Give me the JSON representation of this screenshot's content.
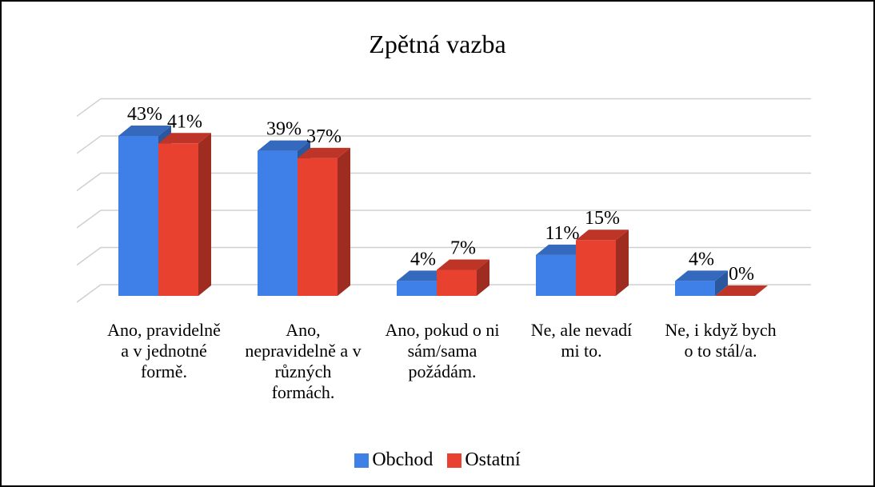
{
  "chart_data": {
    "type": "bar3d",
    "title": "Zpětná vazba",
    "categories": [
      "Ano, pravidelně a v jednotné formě.",
      "Ano, nepravidelně a v různých formách.",
      "Ano, pokud o ni sám/sama požádám.",
      "Ne, ale nevadí mi to.",
      "Ne, i když bych o to stál/a."
    ],
    "series": [
      {
        "name": "Obchod",
        "color": "#3f80e8",
        "values": [
          43,
          39,
          4,
          11,
          4
        ],
        "value_labels": [
          "43%",
          "39%",
          "4%",
          "11%",
          "4%"
        ]
      },
      {
        "name": "Ostatní",
        "color": "#e8412f",
        "values": [
          41,
          37,
          7,
          15,
          0
        ],
        "value_labels": [
          "41%",
          "37%",
          "7%",
          "15%",
          "0%"
        ]
      }
    ],
    "ylim": [
      0,
      50
    ],
    "yticks": [
      0,
      10,
      20,
      30,
      40,
      50
    ],
    "grid": true,
    "legend": "bottom"
  }
}
